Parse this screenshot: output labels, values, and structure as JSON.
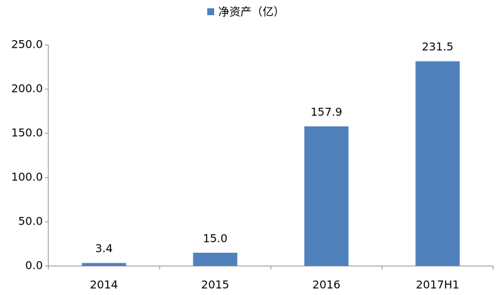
{
  "chart_data": {
    "type": "bar",
    "categories": [
      "2014",
      "2015",
      "2016",
      "2017H1"
    ],
    "series": [
      {
        "name": "净资产（亿）",
        "color": "#4f81bd",
        "values": [
          3.4,
          15.0,
          157.9,
          231.5
        ],
        "value_labels": [
          "3.4",
          "15.0",
          "157.9",
          "231.5"
        ]
      }
    ],
    "ylim": [
      0,
      250
    ],
    "yticks": [
      {
        "value": 0,
        "label": "0.0"
      },
      {
        "value": 50,
        "label": "50.0"
      },
      {
        "value": 100,
        "label": "100.0"
      },
      {
        "value": 150,
        "label": "150.0"
      },
      {
        "value": 200,
        "label": "200.0"
      },
      {
        "value": 250,
        "label": "250.0"
      }
    ],
    "grid": false,
    "legend": "top"
  }
}
